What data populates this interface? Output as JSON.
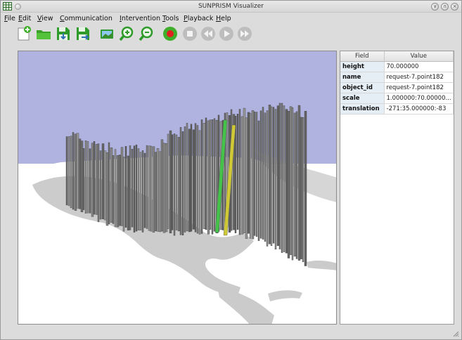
{
  "window": {
    "title": "SUNPRISM Visualizer",
    "controls": {
      "shade": "∨",
      "maximize": "∩",
      "close": "×"
    }
  },
  "menubar": {
    "items": [
      {
        "mnemonic": "F",
        "rest": "ile"
      },
      {
        "mnemonic": "E",
        "rest": "dit"
      },
      {
        "mnemonic": "V",
        "rest": "iew"
      },
      {
        "mnemonic": "C",
        "rest": "ommunication"
      },
      {
        "mnemonic": "I",
        "rest": "ntervention"
      },
      {
        "mnemonic": "T",
        "rest": "ools"
      },
      {
        "mnemonic": "P",
        "rest": "layback"
      },
      {
        "mnemonic": "H",
        "rest": "elp"
      }
    ]
  },
  "toolbar": {
    "icons": [
      "new-document-icon",
      "open-folder-icon",
      "save-icon",
      "save-as-icon",
      "screenshot-icon",
      "zoom-in-icon",
      "zoom-out-icon",
      "record-icon",
      "stop-icon",
      "rewind-icon",
      "play-icon",
      "fast-forward-icon"
    ]
  },
  "colors": {
    "sky": "#b0b2e0",
    "ground": "#ffffff",
    "bar": "#6f6f6f",
    "highlight_green": "#44c24a",
    "highlight_yellow": "#cfc935",
    "record_red": "#e02020",
    "toolbar_green": "#3fae2a",
    "toolbar_blue": "#2f6fb4"
  },
  "properties": {
    "headers": {
      "field": "Field",
      "value": "Value"
    },
    "rows": [
      {
        "field": "height",
        "value": "70.000000"
      },
      {
        "field": "name",
        "value": "request-7.point182"
      },
      {
        "field": "object_id",
        "value": "request-7.point182"
      },
      {
        "field": "scale",
        "value": "1.000000:70.00000..."
      },
      {
        "field": "translation",
        "value": "-271:35.000000:-83"
      }
    ]
  }
}
